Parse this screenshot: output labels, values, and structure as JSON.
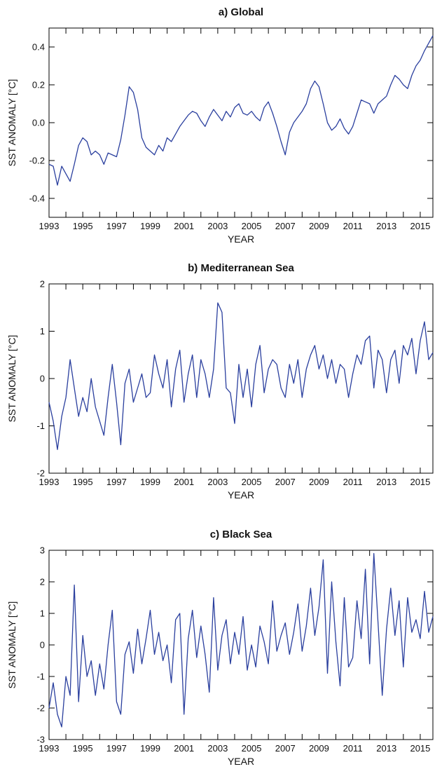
{
  "chart_data": [
    {
      "type": "line",
      "title": "a) Global",
      "xlabel": "YEAR",
      "ylabel": "SST ANOMALY [°C]",
      "xlim": [
        1993.0,
        2015.75
      ],
      "ylim": [
        -0.5,
        0.5
      ],
      "xticks": [
        1993,
        1995,
        1997,
        1999,
        2001,
        2003,
        2005,
        2007,
        2009,
        2011,
        2013,
        2015
      ],
      "xtick_labels": [
        "1993",
        "1995",
        "1997",
        "1999",
        "2001",
        "2003",
        "2005",
        "2007",
        "2009",
        "2011",
        "2013",
        "2015"
      ],
      "yticks": [
        -0.4,
        -0.2,
        0.0,
        0.2,
        0.4
      ],
      "ytick_labels": [
        "-0.4",
        "-0.2",
        "0.0",
        "0.2",
        "0.4"
      ],
      "grid": false,
      "color": "#2a3f9e",
      "x": [
        1993.0,
        1993.25,
        1993.5,
        1993.75,
        1994.0,
        1994.25,
        1994.5,
        1994.75,
        1995.0,
        1995.25,
        1995.5,
        1995.75,
        1996.0,
        1996.25,
        1996.5,
        1996.75,
        1997.0,
        1997.25,
        1997.5,
        1997.75,
        1998.0,
        1998.25,
        1998.5,
        1998.75,
        1999.0,
        1999.25,
        1999.5,
        1999.75,
        2000.0,
        2000.25,
        2000.5,
        2000.75,
        2001.0,
        2001.25,
        2001.5,
        2001.75,
        2002.0,
        2002.25,
        2002.5,
        2002.75,
        2003.0,
        2003.25,
        2003.5,
        2003.75,
        2004.0,
        2004.25,
        2004.5,
        2004.75,
        2005.0,
        2005.25,
        2005.5,
        2005.75,
        2006.0,
        2006.25,
        2006.5,
        2006.75,
        2007.0,
        2007.25,
        2007.5,
        2007.75,
        2008.0,
        2008.25,
        2008.5,
        2008.75,
        2009.0,
        2009.25,
        2009.5,
        2009.75,
        2010.0,
        2010.25,
        2010.5,
        2010.75,
        2011.0,
        2011.25,
        2011.5,
        2011.75,
        2012.0,
        2012.25,
        2012.5,
        2012.75,
        2013.0,
        2013.25,
        2013.5,
        2013.75,
        2014.0,
        2014.25,
        2014.5,
        2014.75,
        2015.0,
        2015.25,
        2015.5,
        2015.75
      ],
      "values": [
        -0.22,
        -0.23,
        -0.33,
        -0.23,
        -0.27,
        -0.31,
        -0.22,
        -0.12,
        -0.08,
        -0.1,
        -0.17,
        -0.15,
        -0.17,
        -0.22,
        -0.16,
        -0.17,
        -0.18,
        -0.09,
        0.04,
        0.19,
        0.16,
        0.07,
        -0.08,
        -0.13,
        -0.15,
        -0.17,
        -0.12,
        -0.15,
        -0.08,
        -0.1,
        -0.06,
        -0.02,
        0.01,
        0.04,
        0.06,
        0.05,
        0.01,
        -0.02,
        0.03,
        0.07,
        0.04,
        0.01,
        0.06,
        0.03,
        0.08,
        0.1,
        0.05,
        0.04,
        0.06,
        0.03,
        0.01,
        0.08,
        0.11,
        0.05,
        -0.02,
        -0.1,
        -0.17,
        -0.05,
        0.0,
        0.03,
        0.06,
        0.1,
        0.18,
        0.22,
        0.19,
        0.1,
        0.0,
        -0.04,
        -0.02,
        0.02,
        -0.03,
        -0.06,
        -0.02,
        0.05,
        0.12,
        0.11,
        0.1,
        0.05,
        0.1,
        0.12,
        0.14,
        0.2,
        0.25,
        0.23,
        0.2,
        0.18,
        0.25,
        0.3,
        0.33,
        0.38,
        0.42,
        0.46
      ]
    },
    {
      "type": "line",
      "title": "b) Mediterranean Sea",
      "xlabel": "YEAR",
      "ylabel": "SST ANOMALY [°C]",
      "xlim": [
        1993.0,
        2015.75
      ],
      "ylim": [
        -2,
        2
      ],
      "xticks": [
        1993,
        1995,
        1997,
        1999,
        2001,
        2003,
        2005,
        2007,
        2009,
        2011,
        2013,
        2015
      ],
      "xtick_labels": [
        "1993",
        "1995",
        "1997",
        "1999",
        "2001",
        "2003",
        "2005",
        "2007",
        "2009",
        "2011",
        "2013",
        "2015"
      ],
      "yticks": [
        -2,
        -1,
        0,
        1,
        2
      ],
      "ytick_labels": [
        "-2",
        "-1",
        "0",
        "1",
        "2"
      ],
      "grid": false,
      "color": "#2a3f9e",
      "x": [
        1993.0,
        1993.25,
        1993.5,
        1993.75,
        1994.0,
        1994.25,
        1994.5,
        1994.75,
        1995.0,
        1995.25,
        1995.5,
        1995.75,
        1996.0,
        1996.25,
        1996.5,
        1996.75,
        1997.0,
        1997.25,
        1997.5,
        1997.75,
        1998.0,
        1998.25,
        1998.5,
        1998.75,
        1999.0,
        1999.25,
        1999.5,
        1999.75,
        2000.0,
        2000.25,
        2000.5,
        2000.75,
        2001.0,
        2001.25,
        2001.5,
        2001.75,
        2002.0,
        2002.25,
        2002.5,
        2002.75,
        2003.0,
        2003.25,
        2003.5,
        2003.75,
        2004.0,
        2004.25,
        2004.5,
        2004.75,
        2005.0,
        2005.25,
        2005.5,
        2005.75,
        2006.0,
        2006.25,
        2006.5,
        2006.75,
        2007.0,
        2007.25,
        2007.5,
        2007.75,
        2008.0,
        2008.25,
        2008.5,
        2008.75,
        2009.0,
        2009.25,
        2009.5,
        2009.75,
        2010.0,
        2010.25,
        2010.5,
        2010.75,
        2011.0,
        2011.25,
        2011.5,
        2011.75,
        2012.0,
        2012.25,
        2012.5,
        2012.75,
        2013.0,
        2013.25,
        2013.5,
        2013.75,
        2014.0,
        2014.25,
        2014.5,
        2014.75,
        2015.0,
        2015.25,
        2015.5,
        2015.75
      ],
      "values": [
        -0.5,
        -0.9,
        -1.5,
        -0.8,
        -0.4,
        0.4,
        -0.2,
        -0.8,
        -0.4,
        -0.7,
        0.0,
        -0.6,
        -0.9,
        -1.2,
        -0.4,
        0.3,
        -0.5,
        -1.4,
        -0.1,
        0.2,
        -0.5,
        -0.2,
        0.1,
        -0.4,
        -0.3,
        0.5,
        0.1,
        -0.2,
        0.4,
        -0.6,
        0.2,
        0.6,
        -0.5,
        0.1,
        0.5,
        -0.4,
        0.4,
        0.1,
        -0.4,
        0.2,
        1.6,
        1.4,
        -0.2,
        -0.3,
        -0.95,
        0.3,
        -0.4,
        0.2,
        -0.6,
        0.3,
        0.7,
        -0.3,
        0.2,
        0.4,
        0.3,
        -0.2,
        -0.4,
        0.3,
        -0.1,
        0.4,
        -0.4,
        0.2,
        0.5,
        0.7,
        0.2,
        0.5,
        0.0,
        0.4,
        -0.1,
        0.3,
        0.2,
        -0.4,
        0.1,
        0.5,
        0.3,
        0.8,
        0.9,
        -0.2,
        0.6,
        0.4,
        -0.3,
        0.4,
        0.6,
        -0.1,
        0.7,
        0.5,
        0.85,
        0.1,
        0.8,
        1.2,
        0.4,
        0.55
      ]
    },
    {
      "type": "line",
      "title": "c) Black Sea",
      "xlabel": "YEAR",
      "ylabel": "SST ANOMALY [°C]",
      "xlim": [
        1993.0,
        2015.75
      ],
      "ylim": [
        -3,
        3
      ],
      "xticks": [
        1993,
        1995,
        1997,
        1999,
        2001,
        2003,
        2005,
        2007,
        2009,
        2011,
        2013,
        2015
      ],
      "xtick_labels": [
        "1993",
        "1995",
        "1997",
        "1999",
        "2001",
        "2003",
        "2005",
        "2007",
        "2009",
        "2011",
        "2013",
        "2015"
      ],
      "yticks": [
        -3,
        -2,
        -1,
        0,
        1,
        2,
        3
      ],
      "ytick_labels": [
        "-3",
        "-2",
        "-1",
        "0",
        "1",
        "2",
        "3"
      ],
      "grid": false,
      "color": "#2a3f9e",
      "x": [
        1993.0,
        1993.25,
        1993.5,
        1993.75,
        1994.0,
        1994.25,
        1994.5,
        1994.75,
        1995.0,
        1995.25,
        1995.5,
        1995.75,
        1996.0,
        1996.25,
        1996.5,
        1996.75,
        1997.0,
        1997.25,
        1997.5,
        1997.75,
        1998.0,
        1998.25,
        1998.5,
        1998.75,
        1999.0,
        1999.25,
        1999.5,
        1999.75,
        2000.0,
        2000.25,
        2000.5,
        2000.75,
        2001.0,
        2001.25,
        2001.5,
        2001.75,
        2002.0,
        2002.25,
        2002.5,
        2002.75,
        2003.0,
        2003.25,
        2003.5,
        2003.75,
        2004.0,
        2004.25,
        2004.5,
        2004.75,
        2005.0,
        2005.25,
        2005.5,
        2005.75,
        2006.0,
        2006.25,
        2006.5,
        2006.75,
        2007.0,
        2007.25,
        2007.5,
        2007.75,
        2008.0,
        2008.25,
        2008.5,
        2008.75,
        2009.0,
        2009.25,
        2009.5,
        2009.75,
        2010.0,
        2010.25,
        2010.5,
        2010.75,
        2011.0,
        2011.25,
        2011.5,
        2011.75,
        2012.0,
        2012.25,
        2012.5,
        2012.75,
        2013.0,
        2013.25,
        2013.5,
        2013.75,
        2014.0,
        2014.25,
        2014.5,
        2014.75,
        2015.0,
        2015.25,
        2015.5,
        2015.75
      ],
      "values": [
        -2.0,
        -1.2,
        -2.2,
        -2.6,
        -1.0,
        -1.6,
        1.9,
        -1.8,
        0.3,
        -1.0,
        -0.5,
        -1.6,
        -0.6,
        -1.4,
        0.0,
        1.1,
        -1.8,
        -2.2,
        -0.3,
        0.1,
        -0.9,
        0.5,
        -0.6,
        0.2,
        1.1,
        -0.3,
        0.4,
        -0.5,
        0.0,
        -1.2,
        0.8,
        1.0,
        -2.2,
        0.2,
        1.1,
        -0.4,
        0.6,
        -0.3,
        -1.5,
        1.5,
        -0.8,
        0.3,
        0.8,
        -0.6,
        0.4,
        -0.3,
        0.9,
        -0.8,
        0.0,
        -0.7,
        0.6,
        0.1,
        -0.6,
        1.4,
        -0.2,
        0.3,
        0.7,
        -0.3,
        0.4,
        1.3,
        -0.2,
        0.6,
        1.8,
        0.3,
        1.2,
        2.7,
        -0.9,
        2.0,
        0.1,
        -1.3,
        1.5,
        -0.7,
        -0.4,
        1.4,
        0.2,
        2.4,
        -0.6,
        2.9,
        0.7,
        -1.6,
        0.5,
        1.8,
        0.3,
        1.4,
        -0.7,
        1.5,
        0.4,
        0.8,
        0.2,
        1.7,
        0.4,
        0.9
      ]
    }
  ]
}
